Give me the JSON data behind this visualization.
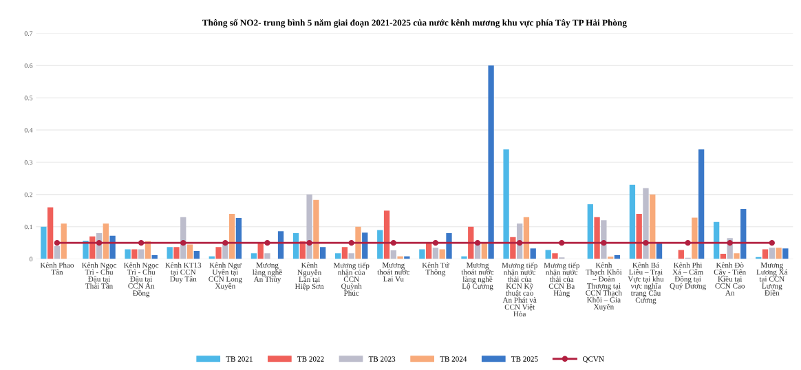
{
  "chart_data": {
    "type": "bar",
    "title": "Thông số NO2- trung bình 5 năm giai đoạn 2021-2025 của nước kênh mương khu vực phía Tây TP Hải Phòng",
    "categories": [
      "Kênh Phao Tân",
      "Kênh Ngọc Trì - Chu Đậu tại Thái Tân",
      "Kênh Ngọc Trì - Chu Đậu tại CCN An Đồng",
      "Kênh KT13 tại CCN Duy Tân",
      "Kênh Ngư Uyên tại CCN Long Xuyên",
      "Mương làng nghề An Thủy",
      "Kênh Nguyễn Lân tại Hiệp Sơn",
      "Mương tiếp nhận của CCN Quỳnh Phúc",
      "Mương thoát nước Lai Vu",
      "Kênh Tứ Thông",
      "Mương thoát nước làng nghề Lộ Cương",
      "Mương tiếp nhận nước thải của KCN Kỹ thuật cao An Phát và CCN Việt Hòa",
      "Mương tiếp nhận nước thải của CCN Ba Hàng",
      "Kênh Thạch Khôi – Đoàn Thượng tại CCN Thạch Khôi – Gia Xuyên",
      "Kênh Bá Liễu – Trại Vực tại khu vực nghĩa trang Cầu Cương",
      "Kênh Phi Xá – Cẩm Đông tại Quý Dương",
      "Kênh Đò Cây - Tiên Kiều tại CCN Cao An",
      "Mương Lương Xá tại CCN Lương Điền"
    ],
    "series": [
      {
        "name": "TB 2021",
        "color": "#4db8e8",
        "values": [
          0.1,
          0.057,
          0.03,
          0.037,
          0.008,
          0.018,
          0.08,
          0.018,
          0.09,
          0.03,
          0.008,
          0.34,
          0.028,
          0.17,
          0.23,
          null,
          0.115,
          0.006
        ]
      },
      {
        "name": "TB 2022",
        "color": "#f0605a",
        "values": [
          0.16,
          0.07,
          0.03,
          0.037,
          0.037,
          0.05,
          0.055,
          0.037,
          0.15,
          0.05,
          0.1,
          0.068,
          0.018,
          0.13,
          0.14,
          0.028,
          0.016,
          0.03
        ]
      },
      {
        "name": "TB 2023",
        "color": "#bdbdcc",
        "values": [
          0.04,
          0.08,
          0.03,
          0.13,
          0.05,
          0.018,
          0.2,
          0.018,
          0.027,
          0.035,
          0.05,
          0.11,
          0.005,
          0.12,
          0.22,
          0.004,
          0.065,
          0.035
        ]
      },
      {
        "name": "TB 2024",
        "color": "#f8aa7a",
        "values": [
          0.11,
          0.11,
          0.055,
          0.045,
          0.14,
          null,
          0.183,
          0.1,
          0.008,
          0.03,
          0.05,
          0.13,
          null,
          0.007,
          0.2,
          0.128,
          0.018,
          0.035
        ]
      },
      {
        "name": "TB 2025",
        "color": "#3a78c8",
        "values": [
          null,
          0.072,
          0.012,
          0.025,
          0.127,
          0.086,
          0.037,
          0.082,
          0.008,
          0.08,
          0.6,
          0.033,
          null,
          0.012,
          0.048,
          0.34,
          0.155,
          0.033
        ]
      },
      {
        "name": "QCVN",
        "type": "line",
        "color": "#b22040",
        "marker": "circle",
        "values": [
          0.05,
          0.05,
          0.05,
          0.05,
          0.05,
          0.05,
          0.05,
          0.05,
          0.05,
          0.05,
          0.05,
          0.05,
          0.05,
          0.05,
          0.05,
          0.05,
          0.05,
          0.05
        ]
      }
    ],
    "ylim": [
      0,
      0.7
    ],
    "yticks": [
      0,
      0.1,
      0.2,
      0.3,
      0.4,
      0.5,
      0.6,
      0.7
    ],
    "grid": "y",
    "legend": "bottom"
  }
}
